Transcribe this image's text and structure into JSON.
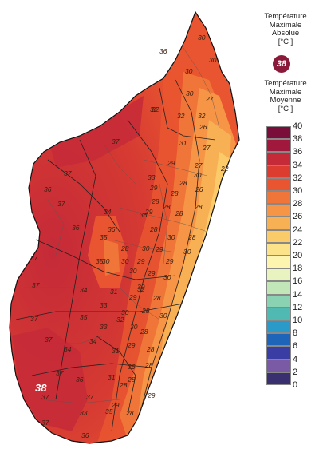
{
  "legend": {
    "absolute_title": [
      "Température",
      "Maximale",
      "Absolue",
      "[°C ]"
    ],
    "absolute_value": "38",
    "mean_title": [
      "Température",
      "Maximale",
      "Moyenne",
      "[°C ]"
    ],
    "scale": [
      {
        "value": "40",
        "color": "#7a0e3a"
      },
      {
        "value": "38",
        "color": "#a0183c"
      },
      {
        "value": "36",
        "color": "#c52a38"
      },
      {
        "value": "34",
        "color": "#dc3c30"
      },
      {
        "value": "32",
        "color": "#e85530"
      },
      {
        "value": "30",
        "color": "#f07538"
      },
      {
        "value": "28",
        "color": "#f59545"
      },
      {
        "value": "26",
        "color": "#f8b055"
      },
      {
        "value": "24",
        "color": "#fbcb6a"
      },
      {
        "value": "22",
        "color": "#fce38a"
      },
      {
        "value": "20",
        "color": "#fdf4b0"
      },
      {
        "value": "18",
        "color": "#e8f3c0"
      },
      {
        "value": "16",
        "color": "#c2e6b8"
      },
      {
        "value": "14",
        "color": "#8bd2b2"
      },
      {
        "value": "12",
        "color": "#50b9b2"
      },
      {
        "value": "10",
        "color": "#2a9bc8"
      },
      {
        "value": "8",
        "color": "#1e64b8"
      },
      {
        "value": "6",
        "color": "#3a3da4"
      },
      {
        "value": "4",
        "color": "#7a5aa4"
      },
      {
        "value": "2",
        "color": "#3a3070"
      },
      {
        "value": "0",
        "color": "#0e1a4a"
      }
    ]
  },
  "map": {
    "max_marker": "38",
    "labels": [
      "30",
      "30",
      "36",
      "30",
      "27",
      "32",
      "30",
      "26",
      "31",
      "27",
      "27",
      "22",
      "29",
      "28",
      "30",
      "28",
      "29",
      "28",
      "29",
      "28",
      "28",
      "28",
      "30",
      "29",
      "30",
      "30",
      "29",
      "30",
      "29",
      "30",
      "29",
      "28",
      "28",
      "28",
      "28",
      "29",
      "26",
      "28",
      "28",
      "28",
      "37",
      "36",
      "36",
      "35",
      "33",
      "34",
      "35",
      "37",
      "37",
      "37",
      "34",
      "35",
      "33",
      "32",
      "33",
      "31",
      "31",
      "33",
      "34",
      "34",
      "37",
      "36",
      "37",
      "37",
      "36",
      "37",
      "37",
      "35",
      "36",
      "36",
      "37",
      "30",
      "37",
      "28",
      "29",
      "30",
      "31",
      "32",
      "32",
      "26",
      "28",
      "28",
      "30",
      "32",
      "31",
      "30",
      "30",
      "28",
      "29",
      "29",
      "30"
    ]
  }
}
